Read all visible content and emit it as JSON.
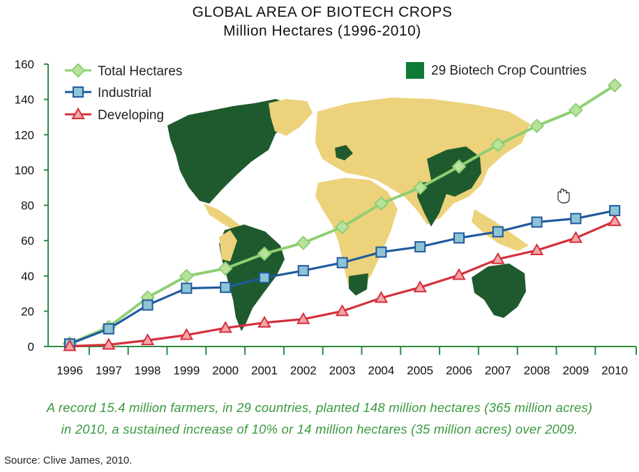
{
  "chart_data": {
    "type": "line",
    "title": "GLOBAL AREA OF BIOTECH CROPS",
    "subtitle": "Million Hectares (1996-2010)",
    "x": [
      "1996",
      "1997",
      "1998",
      "1999",
      "2000",
      "2001",
      "2002",
      "2003",
      "2004",
      "2005",
      "2006",
      "2007",
      "2008",
      "2009",
      "2010"
    ],
    "ylim": [
      0,
      160
    ],
    "yticks": [
      "0",
      "20",
      "40",
      "60",
      "80",
      "100",
      "120",
      "140",
      "160"
    ],
    "series": [
      {
        "name": "Total Hectares",
        "color": "#8fcf73",
        "marker": "diamond",
        "values": [
          1.7,
          11,
          27.8,
          39.9,
          44.2,
          52.6,
          58.7,
          67.7,
          81.0,
          90.0,
          102.0,
          114.3,
          125.0,
          134.0,
          148.0
        ]
      },
      {
        "name": "Industrial",
        "color": "#1f5a9e",
        "marker": "square",
        "values": [
          1.5,
          10,
          23.5,
          33.0,
          33.5,
          39.0,
          43.0,
          47.5,
          53.5,
          56.5,
          61.5,
          65.0,
          70.5,
          72.5,
          77.0
        ]
      },
      {
        "name": "Developing",
        "color": "#d42f3c",
        "marker": "triangle",
        "values": [
          0.2,
          1,
          3.5,
          6.5,
          10.5,
          13.5,
          15.5,
          20.0,
          27.5,
          33.5,
          40.5,
          49.5,
          54.5,
          61.5,
          71.0
        ]
      }
    ],
    "legend_placement": "top-left",
    "map_legend": {
      "label": "29 Biotech Crop Countries",
      "color": "#0f7a36"
    },
    "grid": false
  },
  "caption": {
    "line1": "A record 15.4 million farmers, in 29 countries, planted 148 million hectares (365 million acres)",
    "line2": "in 2010, a sustained increase of 10% or 14 million hectares (35 million acres) over 2009."
  },
  "source": "Source: Clive James, 2010.",
  "colors": {
    "axis": "#2e8b43",
    "caption": "#3a9a3f",
    "map_biotech": "#1f5a2e",
    "map_other": "#ecd27a"
  },
  "icons": {
    "cursor": "hand-cursor-icon"
  }
}
